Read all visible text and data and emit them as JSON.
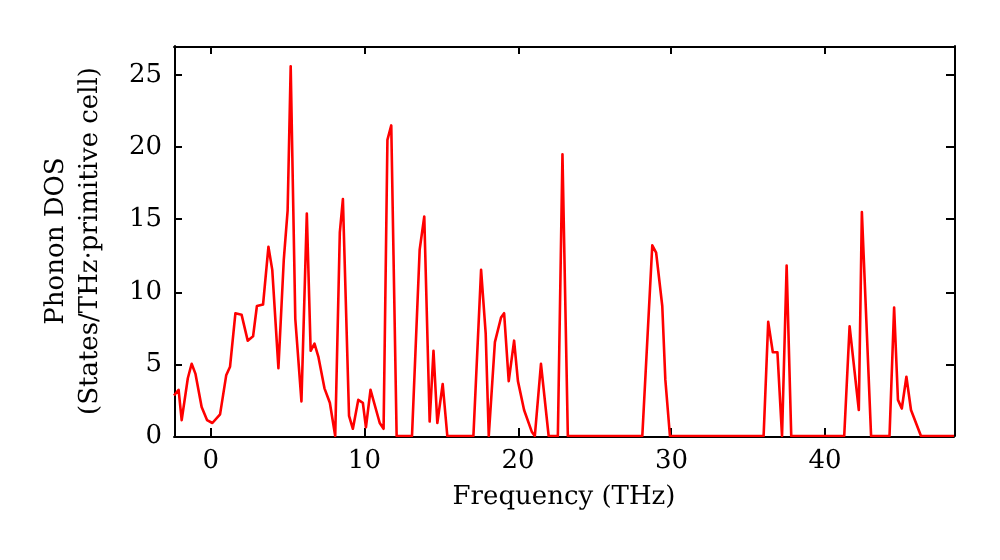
{
  "chart_data": {
    "type": "line",
    "xlabel": "Frequency (THz)",
    "ylabel": "Phonon DOS\n(States/THz·primitive cell)",
    "x": [
      -2.4,
      -2.1,
      -1.9,
      -1.5,
      -1.25,
      -1,
      -0.6,
      -0.25,
      0.1,
      0.6,
      1,
      1.25,
      1.6,
      2,
      2.4,
      2.75,
      3,
      3.4,
      3.75,
      4,
      4.4,
      4.75,
      5,
      5.2,
      5.5,
      5.9,
      6.25,
      6.5,
      6.75,
      7,
      7.4,
      7.75,
      8.1,
      8.4,
      8.6,
      9,
      9.25,
      9.6,
      9.9,
      10.1,
      10.4,
      11,
      11.25,
      11.5,
      11.75,
      12.1,
      13.1,
      13.6,
      13.9,
      14.25,
      14.5,
      14.75,
      15.1,
      15.4,
      17.1,
      17.6,
      17.9,
      18.1,
      18.5,
      18.9,
      19.1,
      19.4,
      19.75,
      20,
      20.4,
      20.9,
      21.1,
      21.5,
      22,
      22.6,
      22.9,
      23.25,
      28.1,
      28.75,
      29,
      29.4,
      29.6,
      29.9,
      36,
      36.3,
      36.6,
      36.9,
      37.2,
      37.5,
      37.8,
      41.25,
      41.6,
      42.2,
      42.4,
      43,
      44.2,
      44.5,
      44.75,
      45,
      45.3,
      45.6,
      46.25,
      48.4
    ],
    "series": [
      {
        "color": "#ff0000",
        "values": [
          2.8,
          3.2,
          1.1,
          4,
          5,
          4.3,
          2,
          1.1,
          0.9,
          1.5,
          4.2,
          4.8,
          8.5,
          8.4,
          6.6,
          6.9,
          9,
          9.1,
          13.1,
          11.5,
          4.7,
          12.2,
          15.6,
          25.6,
          8.1,
          2.4,
          15.4,
          5.9,
          6.4,
          5.5,
          3.3,
          2.3,
          0,
          14.1,
          16.4,
          1.4,
          0.5,
          2.5,
          2.3,
          0.6,
          3.2,
          0.9,
          0.5,
          20.5,
          21.5,
          0,
          0,
          12.9,
          15.2,
          1,
          5.9,
          0.9,
          3.6,
          0,
          0,
          11.5,
          7.1,
          0,
          6.5,
          8.2,
          8.5,
          3.8,
          6.6,
          3.8,
          1.8,
          0.3,
          0,
          5,
          0,
          0,
          19.5,
          0,
          0,
          13.2,
          12.7,
          9,
          3.9,
          0,
          0,
          7.9,
          5.8,
          5.8,
          0,
          11.8,
          0,
          0,
          7.6,
          1.8,
          15.5,
          0,
          0,
          8.9,
          2.5,
          1.9,
          4.1,
          1.8,
          0,
          0
        ]
      }
    ],
    "xlim": [
      -2.4,
      48.4
    ],
    "ylim": [
      0,
      27
    ],
    "xticks": [
      0,
      10,
      20,
      30,
      40
    ],
    "yticks": [
      0,
      5,
      10,
      15,
      20,
      25
    ],
    "grid": false,
    "marker": "none",
    "line_style": "solid"
  }
}
